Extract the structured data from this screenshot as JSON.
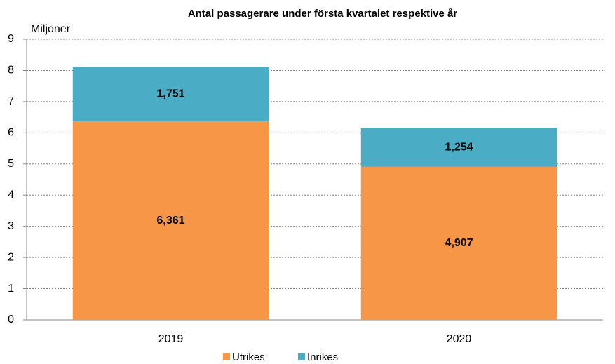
{
  "chart_data": {
    "type": "stacked_bar",
    "title": "Antal passagerare under första kvartalet respektive år",
    "y_axis_label": "Miljoner",
    "categories": [
      "2019",
      "2020"
    ],
    "series": [
      {
        "name": "Utrikes",
        "color": "#f79646",
        "values": [
          6.361,
          4.907
        ],
        "value_labels": [
          "6,361",
          "4,907"
        ]
      },
      {
        "name": "Inrikes",
        "color": "#4bacc6",
        "values": [
          1.751,
          1.254
        ],
        "value_labels": [
          "1,751",
          "1,254"
        ]
      }
    ],
    "ylim": [
      0,
      9
    ],
    "yticks": [
      0,
      1,
      2,
      3,
      4,
      5,
      6,
      7,
      8,
      9
    ],
    "grid": true,
    "legend": "bottom"
  }
}
